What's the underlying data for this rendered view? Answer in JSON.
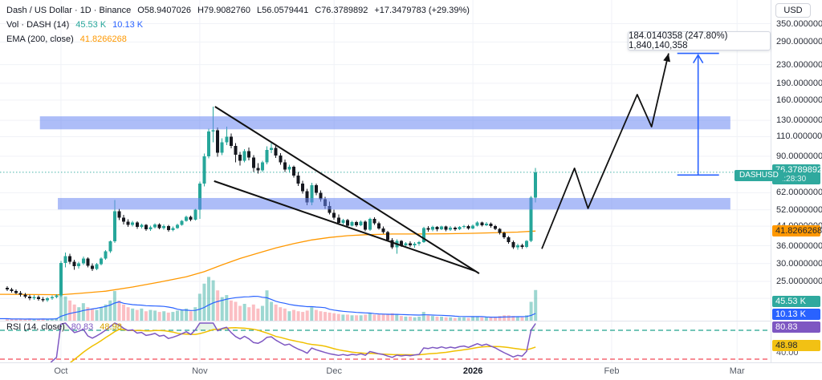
{
  "header": {
    "series_title": "Dash / US Dollar · 1D · Binance",
    "open": "O58.9407026",
    "high": "H79.9082760",
    "low": "L56.0579441",
    "close": "C76.3789892",
    "change": "+17.3479783 (+29.39%)",
    "vol_label": "Vol · DASH (14)",
    "vol_value": "45.53 K",
    "vol_ma_value": "10.13 K",
    "ema_label": "EMA (200, close)",
    "ema_value": "41.8266268"
  },
  "rsi_legend": {
    "label": "RSI (14, close)",
    "value": "80.83",
    "ma_value": "48.98"
  },
  "annotation": {
    "text": "184.0140358 (247.80%) 1,840,140,358"
  },
  "symbol_tag": "DASHUSD",
  "price_axis": {
    "currency": "USD",
    "ticks": [
      {
        "label": "350.0000000",
        "price": 350
      },
      {
        "label": "290.0000000",
        "price": 290
      },
      {
        "label": "230.0000000",
        "price": 230
      },
      {
        "label": "190.0000000",
        "price": 190
      },
      {
        "label": "160.0000000",
        "price": 160
      },
      {
        "label": "130.0000000",
        "price": 130
      },
      {
        "label": "110.0000000",
        "price": 110
      },
      {
        "label": "90.0000000",
        "price": 90
      },
      {
        "label": "62.0000000",
        "price": 62
      },
      {
        "label": "52.0000000",
        "price": 52
      },
      {
        "label": "44.0000000",
        "price": 44
      },
      {
        "label": "36.0000000",
        "price": 36
      },
      {
        "label": "30.0000000",
        "price": 30
      },
      {
        "label": "25.0000000",
        "price": 25
      }
    ],
    "hidden_grid_prices": [
      21
    ],
    "price_badge": {
      "price": "76.3789892",
      "time": "11:28:30"
    },
    "ema_badge": "41.8266268",
    "vol_badge": "45.53 K",
    "vol_ma_badge": "10.13 K",
    "rsi_badge": "80.83",
    "rsi_ma_badge": "48.98",
    "rsi_extra_label": "40.00"
  },
  "time_axis": {
    "labels": [
      {
        "label": "Oct",
        "day": 12,
        "bold": false
      },
      {
        "label": "Nov",
        "day": 43,
        "bold": false
      },
      {
        "label": "Dec",
        "day": 73,
        "bold": false
      },
      {
        "label": "2026",
        "day": 104,
        "bold": true
      },
      {
        "label": "Feb",
        "day": 135,
        "bold": false
      },
      {
        "label": "Mar",
        "day": 163,
        "bold": false
      }
    ]
  },
  "chart_data": {
    "type": "candlestick",
    "title": "Dash / US Dollar 1D Binance",
    "last_price": 76.3789892,
    "rsi_levels": {
      "overbought": 70,
      "oversold": 30
    },
    "colors": {
      "up": "#26a69a",
      "down": "#16181f",
      "vol_up": "rgba(38,166,154,0.45)",
      "vol_down": "rgba(242,54,69,0.32)",
      "ema": "#ff9800",
      "vol_ma": "#2962ff",
      "rsi": "#7e57c2",
      "rsi_ma": "#f0c000",
      "ob_line": "#089981",
      "os_line": "#f23645",
      "ob_fill": "rgba(76,175,80,0.13)",
      "zone": "rgba(105,134,242,0.55)",
      "drawing": "#111111",
      "measure": "#2962ff",
      "grid": "#f0f2f7",
      "separator": "#e0e3eb",
      "last_price_line": "#26a69a"
    },
    "candles": [
      [
        23.4,
        23.8,
        22.6,
        23.0,
        3
      ],
      [
        23.0,
        23.4,
        22.3,
        22.6,
        2
      ],
      [
        22.6,
        23.0,
        21.9,
        22.2,
        3
      ],
      [
        22.2,
        22.6,
        21.4,
        21.8,
        2
      ],
      [
        21.8,
        22.2,
        21.0,
        21.4,
        2
      ],
      [
        21.4,
        21.8,
        20.6,
        21.0,
        3
      ],
      [
        21.0,
        21.7,
        20.7,
        21.3,
        2
      ],
      [
        21.3,
        21.6,
        20.5,
        20.9,
        2
      ],
      [
        20.9,
        21.3,
        20.3,
        20.6,
        3
      ],
      [
        20.6,
        21.3,
        20.3,
        21.0,
        2
      ],
      [
        21.0,
        21.6,
        20.7,
        21.3,
        3
      ],
      [
        21.3,
        21.9,
        21.0,
        21.6,
        4
      ],
      [
        21.6,
        30.8,
        21.3,
        30.2,
        54
      ],
      [
        30.2,
        33.6,
        28.9,
        32.4,
        36
      ],
      [
        32.4,
        33.2,
        29.8,
        30.6,
        30
      ],
      [
        30.6,
        31.2,
        28.2,
        29.2,
        24
      ],
      [
        29.2,
        30.6,
        28.5,
        30.1,
        20
      ],
      [
        30.1,
        32.2,
        29.6,
        31.6,
        26
      ],
      [
        31.6,
        32.0,
        28.9,
        29.3,
        20
      ],
      [
        29.3,
        30.0,
        27.8,
        28.4,
        18
      ],
      [
        28.4,
        30.2,
        28.0,
        29.8,
        16
      ],
      [
        29.8,
        32.0,
        29.4,
        31.6,
        20
      ],
      [
        31.6,
        34.4,
        31.2,
        34.0,
        24
      ],
      [
        34.0,
        38.0,
        33.5,
        37.6,
        30
      ],
      [
        37.6,
        57.5,
        37.0,
        51.2,
        44
      ],
      [
        51.2,
        52.6,
        46.8,
        48.0,
        30
      ],
      [
        48.0,
        49.4,
        44.8,
        46.0,
        24
      ],
      [
        46.0,
        47.2,
        43.6,
        44.6,
        20
      ],
      [
        44.6,
        46.4,
        43.8,
        45.6,
        18
      ],
      [
        45.6,
        46.2,
        42.8,
        43.6,
        16
      ],
      [
        43.6,
        45.2,
        42.9,
        44.5,
        18
      ],
      [
        44.5,
        45.0,
        41.9,
        42.6,
        14
      ],
      [
        42.6,
        44.2,
        42.0,
        43.5,
        16
      ],
      [
        43.5,
        45.3,
        43.0,
        44.8,
        15
      ],
      [
        44.8,
        45.4,
        42.6,
        43.2,
        13
      ],
      [
        43.2,
        44.8,
        42.5,
        44.0,
        14
      ],
      [
        44.0,
        44.6,
        41.5,
        42.2,
        12
      ],
      [
        42.2,
        43.8,
        41.8,
        43.2,
        13
      ],
      [
        43.2,
        45.1,
        42.8,
        44.6,
        15
      ],
      [
        44.6,
        46.9,
        44.2,
        46.4,
        16
      ],
      [
        46.4,
        48.9,
        46.0,
        48.4,
        18
      ],
      [
        48.4,
        49.0,
        46.2,
        47.0,
        14
      ],
      [
        47.0,
        52.6,
        46.6,
        52.0,
        20
      ],
      [
        52.0,
        69.5,
        47.5,
        68.0,
        40
      ],
      [
        68.0,
        92.5,
        66.0,
        90.0,
        55
      ],
      [
        90.0,
        119.5,
        88.0,
        116.0,
        65
      ],
      [
        116.0,
        149.5,
        104.0,
        117.5,
        60
      ],
      [
        117.5,
        121.0,
        89.5,
        93.5,
        45
      ],
      [
        93.5,
        108.0,
        91.0,
        104.0,
        35
      ],
      [
        104.0,
        122.0,
        101.0,
        110.0,
        38
      ],
      [
        110.0,
        113.5,
        97.5,
        100.0,
        30
      ],
      [
        100.0,
        103.0,
        84.5,
        91.5,
        28
      ],
      [
        91.5,
        94.0,
        82.0,
        86.0,
        22
      ],
      [
        86.0,
        97.0,
        84.5,
        95.0,
        25
      ],
      [
        95.0,
        98.5,
        86.5,
        89.0,
        20
      ],
      [
        89.0,
        91.0,
        76.5,
        80.0,
        24
      ],
      [
        80.0,
        84.0,
        75.5,
        78.0,
        18
      ],
      [
        78.0,
        86.0,
        76.5,
        84.5,
        22
      ],
      [
        84.5,
        99.5,
        83.0,
        96.0,
        45
      ],
      [
        96.0,
        103.0,
        93.0,
        98.0,
        28
      ],
      [
        98.0,
        100.0,
        88.5,
        90.5,
        24
      ],
      [
        90.5,
        93.0,
        82.5,
        84.5,
        20
      ],
      [
        84.5,
        87.0,
        76.5,
        78.5,
        18
      ],
      [
        78.5,
        82.5,
        76.0,
        81.0,
        14
      ],
      [
        81.0,
        82.0,
        72.5,
        74.0,
        16
      ],
      [
        74.0,
        76.5,
        66.5,
        68.0,
        14
      ],
      [
        68.0,
        70.0,
        61.5,
        63.0,
        13
      ],
      [
        63.0,
        64.5,
        54.5,
        56.0,
        15
      ],
      [
        56.0,
        68.5,
        54.5,
        67.0,
        20
      ],
      [
        67.0,
        68.0,
        60.5,
        62.0,
        16
      ],
      [
        62.0,
        63.5,
        56.5,
        58.0,
        14
      ],
      [
        58.0,
        59.5,
        52.5,
        54.0,
        13
      ],
      [
        54.0,
        56.5,
        49.5,
        50.5,
        12
      ],
      [
        50.5,
        52.0,
        47.0,
        48.0,
        11
      ],
      [
        48.0,
        49.5,
        44.5,
        45.5,
        10
      ],
      [
        45.5,
        47.5,
        44.8,
        46.8,
        9
      ],
      [
        46.8,
        47.5,
        43.5,
        44.2,
        9
      ],
      [
        44.2,
        46.4,
        43.8,
        45.8,
        8
      ],
      [
        45.8,
        46.5,
        43.6,
        44.4,
        8
      ],
      [
        44.4,
        46.6,
        44.0,
        46.0,
        8
      ],
      [
        46.0,
        46.6,
        41.8,
        42.5,
        9
      ],
      [
        42.5,
        48.0,
        42.0,
        47.4,
        11
      ],
      [
        47.4,
        48.2,
        44.6,
        45.3,
        9
      ],
      [
        45.3,
        46.0,
        42.4,
        43.0,
        9
      ],
      [
        43.0,
        43.8,
        40.8,
        41.4,
        10
      ],
      [
        41.4,
        42.0,
        37.6,
        38.2,
        10
      ],
      [
        38.2,
        39.0,
        34.8,
        35.4,
        11
      ],
      [
        35.4,
        38.4,
        33.2,
        37.8,
        10
      ],
      [
        37.8,
        38.2,
        35.6,
        36.2,
        7
      ],
      [
        36.2,
        37.4,
        35.4,
        36.9,
        6
      ],
      [
        36.9,
        37.6,
        35.6,
        36.1,
        6
      ],
      [
        36.1,
        37.3,
        35.3,
        36.8,
        5
      ],
      [
        36.8,
        37.8,
        36.0,
        37.3,
        6
      ],
      [
        37.3,
        43.6,
        37.0,
        43.2,
        13
      ],
      [
        43.2,
        44.0,
        41.6,
        42.4,
        8
      ],
      [
        42.4,
        44.2,
        41.8,
        43.6,
        7
      ],
      [
        43.6,
        44.0,
        41.8,
        42.6,
        6
      ],
      [
        42.6,
        44.3,
        42.2,
        43.8,
        6
      ],
      [
        43.8,
        44.2,
        41.8,
        42.5,
        5
      ],
      [
        42.5,
        44.0,
        42.0,
        43.4,
        5
      ],
      [
        43.4,
        43.8,
        41.9,
        42.6,
        4
      ],
      [
        42.6,
        44.1,
        42.2,
        43.6,
        5
      ],
      [
        43.6,
        44.6,
        43.0,
        44.1,
        5
      ],
      [
        44.1,
        44.5,
        42.4,
        43.0,
        4
      ],
      [
        43.0,
        44.8,
        42.6,
        44.3,
        6
      ],
      [
        44.3,
        46.2,
        43.9,
        45.6,
        6
      ],
      [
        45.6,
        46.0,
        43.8,
        44.4,
        5
      ],
      [
        44.4,
        45.8,
        44.0,
        45.2,
        5
      ],
      [
        45.2,
        45.6,
        43.4,
        44.0,
        5
      ],
      [
        44.0,
        44.5,
        42.2,
        42.8,
        6
      ],
      [
        42.8,
        43.2,
        40.4,
        41.0,
        7
      ],
      [
        41.0,
        41.5,
        38.6,
        39.2,
        8
      ],
      [
        39.2,
        39.8,
        36.8,
        37.4,
        8
      ],
      [
        37.4,
        38.0,
        34.8,
        35.4,
        7
      ],
      [
        35.4,
        36.8,
        34.6,
        36.2,
        6
      ],
      [
        36.2,
        36.8,
        34.9,
        35.5,
        5
      ],
      [
        35.5,
        38.2,
        35.1,
        37.8,
        8
      ],
      [
        37.8,
        60.0,
        37.4,
        58.9,
        28
      ],
      [
        58.94,
        79.91,
        56.06,
        76.38,
        45.53
      ]
    ],
    "ema_path": [
      [
        0,
        21.9
      ],
      [
        12,
        21.8
      ],
      [
        16,
        22.1
      ],
      [
        22,
        22.6
      ],
      [
        28,
        23.6
      ],
      [
        34,
        24.8
      ],
      [
        40,
        26.2
      ],
      [
        44,
        27.6
      ],
      [
        48,
        29.6
      ],
      [
        52,
        31.6
      ],
      [
        56,
        33.4
      ],
      [
        60,
        35.2
      ],
      [
        64,
        36.8
      ],
      [
        68,
        38.2
      ],
      [
        72,
        39.2
      ],
      [
        76,
        39.9
      ],
      [
        80,
        40.3
      ],
      [
        86,
        40.6
      ],
      [
        92,
        40.6
      ],
      [
        98,
        40.7
      ],
      [
        104,
        40.9
      ],
      [
        110,
        41.2
      ],
      [
        114,
        41.4
      ],
      [
        118,
        41.83
      ]
    ],
    "zones": [
      {
        "name": "resistance-zone",
        "day_from": 7.3,
        "day_to": 161.5,
        "price_from": 118.6,
        "price_to": 135.5
      },
      {
        "name": "support-zone",
        "day_from": 11.3,
        "day_to": 161.5,
        "price_from": 52.2,
        "price_to": 58.7
      }
    ],
    "wedge_lines": [
      {
        "from": [
          46.4,
          149.6
        ],
        "to": [
          105.4,
          27.1
        ]
      },
      {
        "from": [
          46.2,
          69.8
        ],
        "to": [
          104.5,
          27.8
        ]
      }
    ],
    "projection_path": [
      [
        119.4,
        34.9
      ],
      [
        126.7,
        79.6
      ],
      [
        129.7,
        52.8
      ],
      [
        140.7,
        169.3
      ],
      [
        143.9,
        121.8
      ],
      [
        147.7,
        258.0
      ]
    ],
    "measure_tool": {
      "day": 154.3,
      "price_from": 74.25,
      "price_to": 258.26
    }
  }
}
